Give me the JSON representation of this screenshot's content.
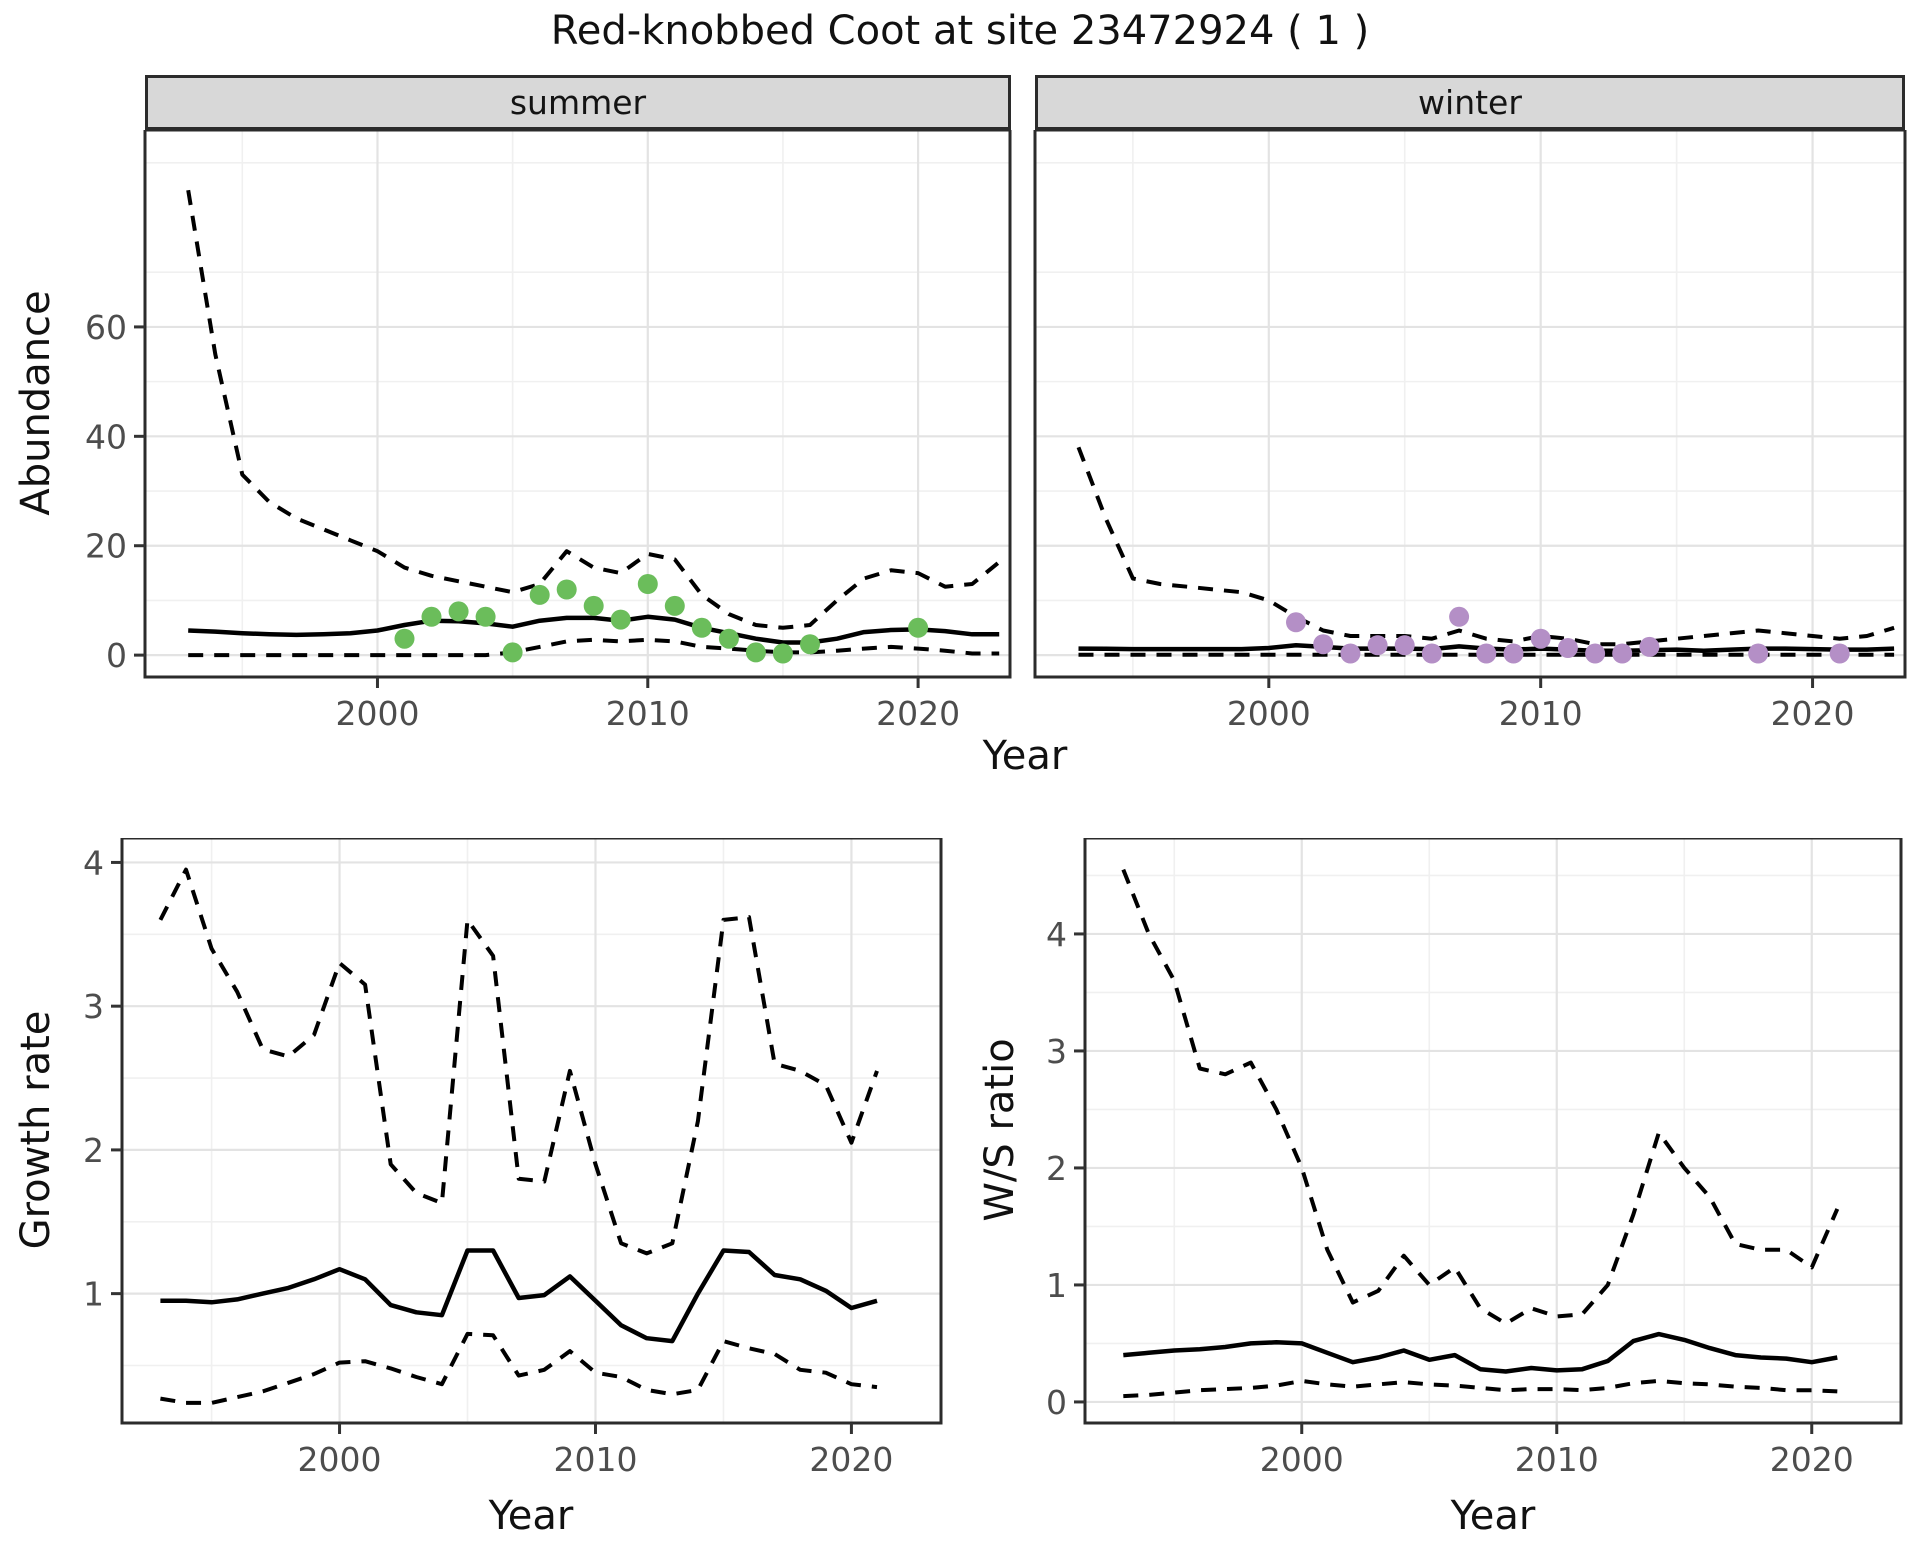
{
  "title": "Red-knobbed Coot at site 23472924 ( 1 )",
  "colors": {
    "summer_point": "#6bbd5b",
    "winter_point": "#b48fc6",
    "line": "#000000",
    "strip_bg": "#d8d8d8",
    "panel_border": "#2b2b2b",
    "grid_major": "#e3e3e3",
    "grid_minor": "#f0f0f0",
    "tick_mark": "#333333",
    "tick_label": "#4d4d4d"
  },
  "chart_data": [
    {
      "id": "abundance-summer",
      "type": "line",
      "facet_label": "summer",
      "title": "Red-knobbed Coot at site 23472924 ( 1 )",
      "xlabel": "Year",
      "ylabel": "Abundance",
      "xlim": [
        1991.4,
        2023.4
      ],
      "ylim": [
        -4,
        96
      ],
      "xticks": [
        2000,
        2010,
        2020
      ],
      "yticks": [
        0,
        20,
        40,
        60
      ],
      "xminor": [
        1995,
        2005,
        2015
      ],
      "yminor": [
        10,
        30,
        50,
        70,
        90
      ],
      "grid": true,
      "legend": "none",
      "series": [
        {
          "name": "upper-95ci",
          "style": "dashed",
          "x": [
            1993,
            1994,
            1995,
            1996,
            1997,
            1998,
            1999,
            2000,
            2001,
            2002,
            2003,
            2004,
            2005,
            2006,
            2007,
            2008,
            2009,
            2010,
            2011,
            2012,
            2013,
            2014,
            2015,
            2016,
            2017,
            2018,
            2019,
            2020,
            2021,
            2022,
            2023
          ],
          "y": [
            85,
            55,
            33,
            28,
            25,
            23,
            21,
            19,
            16,
            14.5,
            13.5,
            12.5,
            11.5,
            13,
            19,
            16,
            15,
            18.5,
            17.5,
            11,
            7.5,
            5.5,
            5,
            5.5,
            10,
            14,
            15.5,
            15,
            12.5,
            13,
            17
          ]
        },
        {
          "name": "median",
          "style": "solid",
          "x": [
            1993,
            1994,
            1995,
            1996,
            1997,
            1998,
            1999,
            2000,
            2001,
            2002,
            2003,
            2004,
            2005,
            2006,
            2007,
            2008,
            2009,
            2010,
            2011,
            2012,
            2013,
            2014,
            2015,
            2016,
            2017,
            2018,
            2019,
            2020,
            2021,
            2022,
            2023
          ],
          "y": [
            4.5,
            4.3,
            4.0,
            3.8,
            3.7,
            3.8,
            4.0,
            4.5,
            5.5,
            6.3,
            6.2,
            5.8,
            5.2,
            6.3,
            6.8,
            6.8,
            6.3,
            7.0,
            6.5,
            5.0,
            4.0,
            3.0,
            2.3,
            2.3,
            3.0,
            4.2,
            4.6,
            4.7,
            4.4,
            3.8,
            3.8
          ]
        },
        {
          "name": "lower-95ci",
          "style": "dashed",
          "x": [
            1993,
            1994,
            1995,
            1996,
            1997,
            1998,
            1999,
            2000,
            2001,
            2002,
            2003,
            2004,
            2005,
            2006,
            2007,
            2008,
            2009,
            2010,
            2011,
            2012,
            2013,
            2014,
            2015,
            2016,
            2017,
            2018,
            2019,
            2020,
            2021,
            2022,
            2023
          ],
          "y": [
            0,
            0,
            0,
            0,
            0,
            0,
            0,
            0,
            0,
            0,
            0,
            0,
            0.5,
            1.5,
            2.5,
            2.8,
            2.5,
            2.8,
            2.5,
            1.5,
            1.2,
            0.8,
            0.5,
            0.5,
            0.8,
            1.2,
            1.5,
            1.2,
            0.8,
            0.3,
            0.3
          ]
        },
        {
          "name": "observed-count",
          "style": "points",
          "color_key": "summer_point",
          "x": [
            2001,
            2002,
            2003,
            2004,
            2005,
            2006,
            2007,
            2008,
            2009,
            2010,
            2011,
            2012,
            2013,
            2014,
            2015,
            2016,
            2020
          ],
          "y": [
            3,
            7,
            8,
            7,
            0.5,
            11,
            12,
            9,
            6.5,
            13,
            9,
            5,
            3,
            0.5,
            0.3,
            2,
            5
          ]
        }
      ]
    },
    {
      "id": "abundance-winter",
      "type": "line",
      "facet_label": "winter",
      "xlabel": "Year",
      "ylabel": "Abundance",
      "xlim": [
        1991.4,
        2023.4
      ],
      "ylim": [
        -4,
        96
      ],
      "xticks": [
        2000,
        2010,
        2020
      ],
      "yticks": [
        0,
        20,
        40,
        60
      ],
      "xminor": [
        1995,
        2005,
        2015
      ],
      "yminor": [
        10,
        30,
        50,
        70,
        90
      ],
      "grid": true,
      "legend": "none",
      "series": [
        {
          "name": "upper-95ci",
          "style": "dashed",
          "x": [
            1993,
            1994,
            1995,
            1996,
            1997,
            1998,
            1999,
            2000,
            2001,
            2002,
            2003,
            2004,
            2005,
            2006,
            2007,
            2008,
            2009,
            2010,
            2011,
            2012,
            2013,
            2014,
            2015,
            2016,
            2017,
            2018,
            2019,
            2020,
            2021,
            2022,
            2023
          ],
          "y": [
            38,
            25,
            14,
            13,
            12.5,
            12,
            11.5,
            10,
            7,
            4.5,
            3.5,
            3.5,
            3.5,
            3,
            4.5,
            3,
            2.5,
            3.5,
            3,
            2,
            2,
            2.5,
            3,
            3.5,
            4,
            4.5,
            4,
            3.5,
            3,
            3.5,
            5
          ]
        },
        {
          "name": "median",
          "style": "solid",
          "x": [
            1993,
            1994,
            1995,
            1996,
            1997,
            1998,
            1999,
            2000,
            2001,
            2002,
            2003,
            2004,
            2005,
            2006,
            2007,
            2008,
            2009,
            2010,
            2011,
            2012,
            2013,
            2014,
            2015,
            2016,
            2017,
            2018,
            2019,
            2020,
            2021,
            2022,
            2023
          ],
          "y": [
            1.2,
            1.15,
            1.1,
            1.1,
            1.1,
            1.1,
            1.1,
            1.3,
            1.8,
            1.5,
            1.2,
            1.2,
            1.2,
            1.1,
            1.6,
            1.2,
            1.0,
            1.2,
            1.0,
            0.8,
            0.8,
            0.9,
            1.0,
            0.8,
            1.0,
            1.2,
            1.2,
            1.1,
            1.0,
            1.0,
            1.2
          ]
        },
        {
          "name": "lower-95ci",
          "style": "dashed",
          "x": [
            1993,
            1994,
            1995,
            1996,
            1997,
            1998,
            1999,
            2000,
            2001,
            2002,
            2003,
            2004,
            2005,
            2006,
            2007,
            2008,
            2009,
            2010,
            2011,
            2012,
            2013,
            2014,
            2015,
            2016,
            2017,
            2018,
            2019,
            2020,
            2021,
            2022,
            2023
          ],
          "y": [
            0.05,
            0.05,
            0.05,
            0.05,
            0.05,
            0.05,
            0.05,
            0.05,
            0.05,
            0.05,
            0.05,
            0.05,
            0.05,
            0.05,
            0.05,
            0.05,
            0.05,
            0.05,
            0.05,
            0.05,
            0.05,
            0.05,
            0.05,
            0.05,
            0.05,
            0.05,
            0.05,
            0.05,
            0.05,
            0.05,
            0.05
          ]
        },
        {
          "name": "observed-count",
          "style": "points",
          "color_key": "winter_point",
          "x": [
            2001,
            2002,
            2003,
            2004,
            2005,
            2006,
            2007,
            2008,
            2009,
            2010,
            2011,
            2012,
            2013,
            2014,
            2018,
            2021
          ],
          "y": [
            6,
            2,
            0.3,
            1.8,
            1.8,
            0.3,
            7,
            0.3,
            0.3,
            3,
            1.3,
            0.3,
            0.3,
            1.5,
            0.3,
            0.3
          ]
        }
      ]
    },
    {
      "id": "growth-rate",
      "type": "line",
      "facet_label": "",
      "xlabel": "Year",
      "ylabel": "Growth rate",
      "xlim": [
        1991.5,
        2023.5
      ],
      "ylim": [
        0.1,
        4.17
      ],
      "xticks": [
        2000,
        2010,
        2020
      ],
      "yticks": [
        1,
        2,
        3,
        4
      ],
      "xminor": [
        1995,
        2005,
        2015
      ],
      "yminor": [
        0.5,
        1.5,
        2.5,
        3.5
      ],
      "grid": true,
      "legend": "none",
      "series": [
        {
          "name": "upper-95ci",
          "style": "dashed",
          "x": [
            1993,
            1994,
            1995,
            1996,
            1997,
            1998,
            1999,
            2000,
            2001,
            2002,
            2003,
            2004,
            2005,
            2006,
            2007,
            2008,
            2009,
            2010,
            2011,
            2012,
            2013,
            2014,
            2015,
            2016,
            2017,
            2018,
            2019,
            2020,
            2021
          ],
          "y": [
            3.6,
            3.95,
            3.4,
            3.1,
            2.7,
            2.65,
            2.8,
            3.3,
            3.15,
            1.9,
            1.7,
            1.63,
            3.6,
            3.35,
            1.8,
            1.78,
            2.55,
            1.9,
            1.35,
            1.28,
            1.35,
            2.2,
            3.6,
            3.62,
            2.6,
            2.55,
            2.45,
            2.05,
            2.55
          ]
        },
        {
          "name": "median",
          "style": "solid",
          "x": [
            1993,
            1994,
            1995,
            1996,
            1997,
            1998,
            1999,
            2000,
            2001,
            2002,
            2003,
            2004,
            2005,
            2006,
            2007,
            2008,
            2009,
            2010,
            2011,
            2012,
            2013,
            2014,
            2015,
            2016,
            2017,
            2018,
            2019,
            2020,
            2021
          ],
          "y": [
            0.95,
            0.95,
            0.94,
            0.96,
            1.0,
            1.04,
            1.1,
            1.17,
            1.1,
            0.92,
            0.87,
            0.85,
            1.3,
            1.3,
            0.97,
            0.99,
            1.12,
            0.95,
            0.78,
            0.69,
            0.67,
            1.0,
            1.3,
            1.29,
            1.13,
            1.1,
            1.02,
            0.9,
            0.95
          ]
        },
        {
          "name": "lower-95ci",
          "style": "dashed",
          "x": [
            1993,
            1994,
            1995,
            1996,
            1997,
            1998,
            1999,
            2000,
            2001,
            2002,
            2003,
            2004,
            2005,
            2006,
            2007,
            2008,
            2009,
            2010,
            2011,
            2012,
            2013,
            2014,
            2015,
            2016,
            2017,
            2018,
            2019,
            2020,
            2021
          ],
          "y": [
            0.27,
            0.24,
            0.24,
            0.28,
            0.32,
            0.38,
            0.44,
            0.52,
            0.53,
            0.48,
            0.42,
            0.37,
            0.72,
            0.71,
            0.43,
            0.47,
            0.6,
            0.45,
            0.42,
            0.33,
            0.3,
            0.33,
            0.67,
            0.62,
            0.58,
            0.47,
            0.45,
            0.37,
            0.35
          ]
        }
      ]
    },
    {
      "id": "ws-ratio",
      "type": "line",
      "facet_label": "",
      "xlabel": "Year",
      "ylabel": "W/S ratio",
      "xlim": [
        1991.5,
        2023.5
      ],
      "ylim": [
        -0.18,
        4.82
      ],
      "xticks": [
        2000,
        2010,
        2020
      ],
      "yticks": [
        0,
        1,
        2,
        3,
        4
      ],
      "xminor": [
        1995,
        2005,
        2015
      ],
      "yminor": [
        0.5,
        1.5,
        2.5,
        3.5,
        4.5
      ],
      "grid": true,
      "legend": "none",
      "series": [
        {
          "name": "upper-95ci",
          "style": "dashed",
          "x": [
            1993,
            1994,
            1995,
            1996,
            1997,
            1998,
            1999,
            2000,
            2001,
            2002,
            2003,
            2004,
            2005,
            2006,
            2007,
            2008,
            2009,
            2010,
            2011,
            2012,
            2013,
            2014,
            2015,
            2016,
            2017,
            2018,
            2019,
            2020,
            2021
          ],
          "y": [
            4.55,
            4.0,
            3.6,
            2.85,
            2.8,
            2.9,
            2.5,
            2.0,
            1.3,
            0.85,
            0.95,
            1.25,
            1.0,
            1.15,
            0.8,
            0.67,
            0.8,
            0.73,
            0.75,
            1.0,
            1.6,
            2.3,
            2.0,
            1.75,
            1.35,
            1.3,
            1.3,
            1.15,
            1.65
          ]
        },
        {
          "name": "median",
          "style": "solid",
          "x": [
            1993,
            1994,
            1995,
            1996,
            1997,
            1998,
            1999,
            2000,
            2001,
            2002,
            2003,
            2004,
            2005,
            2006,
            2007,
            2008,
            2009,
            2010,
            2011,
            2012,
            2013,
            2014,
            2015,
            2016,
            2017,
            2018,
            2019,
            2020,
            2021
          ],
          "y": [
            0.4,
            0.42,
            0.44,
            0.45,
            0.47,
            0.5,
            0.51,
            0.5,
            0.42,
            0.34,
            0.38,
            0.44,
            0.36,
            0.4,
            0.28,
            0.26,
            0.29,
            0.27,
            0.28,
            0.35,
            0.52,
            0.58,
            0.53,
            0.46,
            0.4,
            0.38,
            0.37,
            0.34,
            0.38
          ]
        },
        {
          "name": "lower-95ci",
          "style": "dashed",
          "x": [
            1993,
            1994,
            1995,
            1996,
            1997,
            1998,
            1999,
            2000,
            2001,
            2002,
            2003,
            2004,
            2005,
            2006,
            2007,
            2008,
            2009,
            2010,
            2011,
            2012,
            2013,
            2014,
            2015,
            2016,
            2017,
            2018,
            2019,
            2020,
            2021
          ],
          "y": [
            0.05,
            0.06,
            0.08,
            0.1,
            0.11,
            0.12,
            0.14,
            0.18,
            0.15,
            0.13,
            0.15,
            0.17,
            0.15,
            0.14,
            0.12,
            0.1,
            0.11,
            0.11,
            0.1,
            0.12,
            0.16,
            0.18,
            0.16,
            0.15,
            0.13,
            0.12,
            0.1,
            0.1,
            0.09
          ]
        }
      ]
    }
  ]
}
